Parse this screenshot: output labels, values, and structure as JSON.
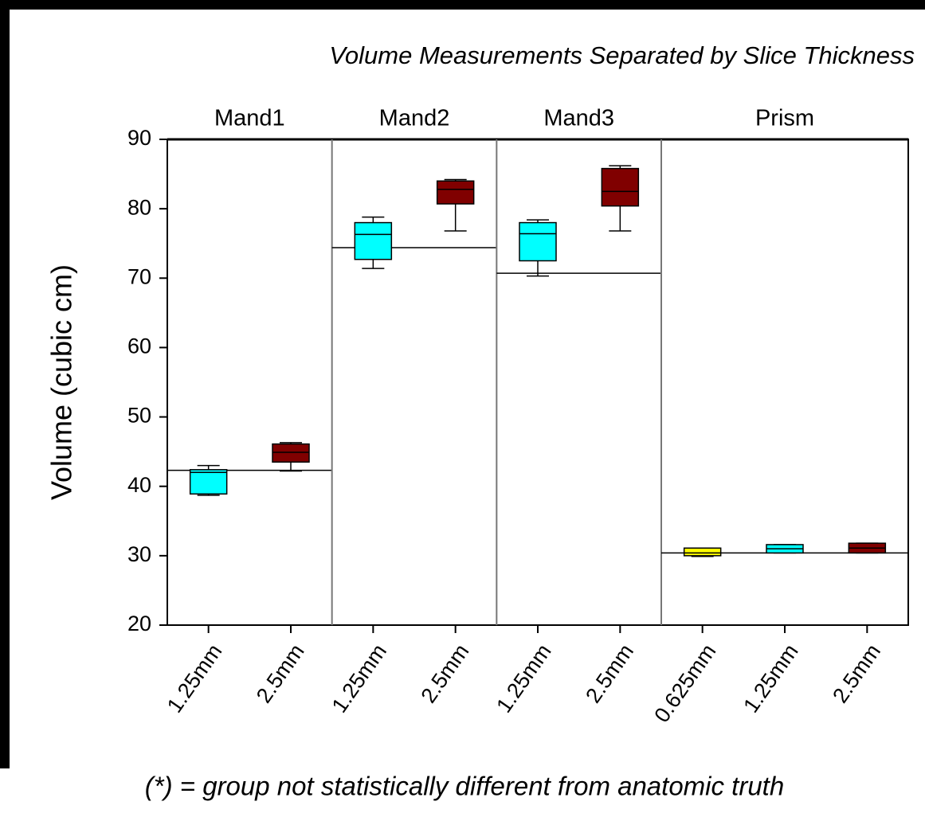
{
  "chart_data": {
    "type": "box",
    "title": "Volume Measurements Separated by Slice Thickness",
    "ylabel": "Volume (cubic cm)",
    "ylim": [
      20,
      90
    ],
    "yticks": [
      20,
      30,
      40,
      50,
      60,
      70,
      80,
      90
    ],
    "groups": [
      {
        "name": "Mand1",
        "truth": 42.3,
        "boxes": [
          {
            "label": "1.25mm",
            "color": "#00ffff",
            "min": 38.7,
            "q1": 38.9,
            "median": 42.0,
            "q3": 42.4,
            "max": 43.0
          },
          {
            "label": "2.5mm",
            "color": "#800000",
            "min": 42.2,
            "q1": 43.5,
            "median": 44.9,
            "q3": 46.1,
            "max": 46.3
          }
        ]
      },
      {
        "name": "Mand2",
        "truth": 74.4,
        "boxes": [
          {
            "label": "1.25mm",
            "color": "#00ffff",
            "min": 71.4,
            "q1": 72.7,
            "median": 76.3,
            "q3": 78.0,
            "max": 78.8
          },
          {
            "label": "2.5mm",
            "color": "#800000",
            "min": 76.8,
            "q1": 80.7,
            "median": 82.8,
            "q3": 84.0,
            "max": 84.2
          }
        ]
      },
      {
        "name": "Mand3",
        "truth": 70.7,
        "boxes": [
          {
            "label": "1.25mm",
            "color": "#00ffff",
            "min": 70.3,
            "q1": 72.5,
            "median": 76.4,
            "q3": 78.0,
            "max": 78.4
          },
          {
            "label": "2.5mm",
            "color": "#800000",
            "min": 76.8,
            "q1": 80.4,
            "median": 82.5,
            "q3": 85.8,
            "max": 86.2
          }
        ]
      },
      {
        "name": "Prism",
        "truth": 30.4,
        "boxes": [
          {
            "label": "0.625mm",
            "color": "#ffff00",
            "min": 29.9,
            "q1": 30.0,
            "median": 30.4,
            "q3": 31.1,
            "max": 31.1
          },
          {
            "label": "1.25mm",
            "color": "#00ffff",
            "min": 30.4,
            "q1": 30.4,
            "median": 31.0,
            "q3": 31.6,
            "max": 31.6
          },
          {
            "label": "2.5mm",
            "color": "#800000",
            "min": 30.4,
            "q1": 30.4,
            "median": 31.1,
            "q3": 31.8,
            "max": 31.8
          }
        ]
      }
    ],
    "footnote": "(*) = group not statistically different from anatomic truth"
  }
}
